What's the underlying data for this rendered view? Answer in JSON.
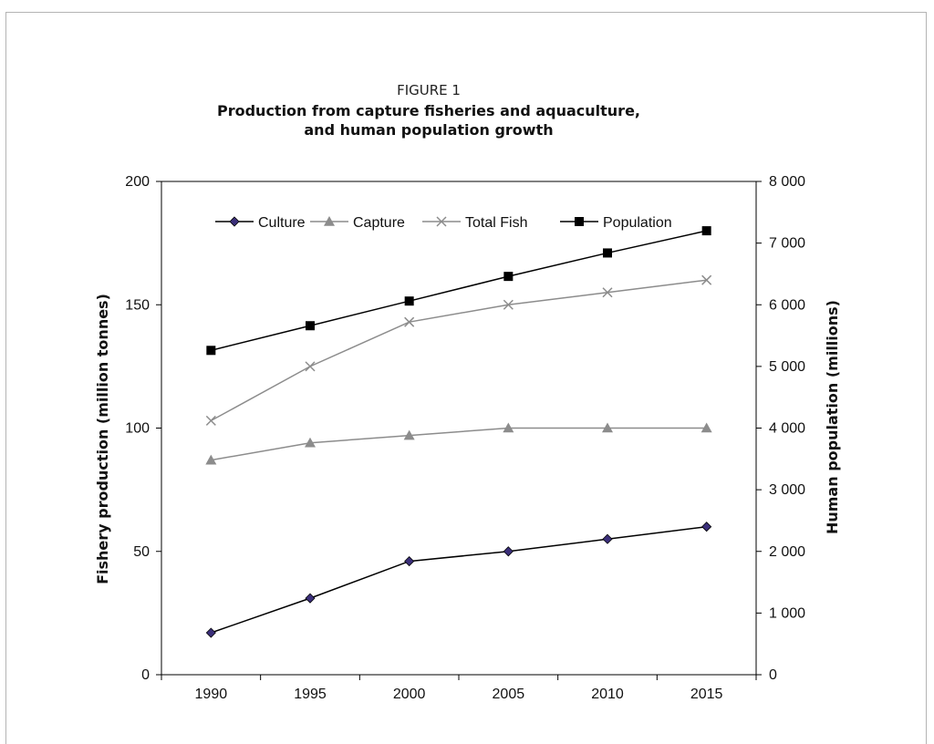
{
  "figure": {
    "label": "FIGURE 1",
    "title_line1": "Production from capture fisheries and aquaculture,",
    "title_line2": "and human population growth"
  },
  "chart_data": {
    "type": "line",
    "x": [
      1990,
      1995,
      2000,
      2005,
      2010,
      2015
    ],
    "xlabel": "",
    "ylabel_left": "Fishery production (million tonnes)",
    "ylabel_right": "Human population (millions)",
    "ylim_left": [
      0,
      200
    ],
    "yticks_left": [
      0,
      50,
      100,
      150,
      200
    ],
    "ytick_labels_left": [
      "0",
      "50",
      "100",
      "150",
      "200"
    ],
    "ylim_right": [
      0,
      8000
    ],
    "yticks_right": [
      0,
      1000,
      2000,
      3000,
      4000,
      5000,
      6000,
      7000,
      8000
    ],
    "ytick_labels_right": [
      "0",
      "1 000",
      "2 000",
      "3 000",
      "4 000",
      "5 000",
      "6 000",
      "7 000",
      "8 000"
    ],
    "legend_position": "top",
    "grid": false,
    "series": [
      {
        "name": "Culture",
        "axis": "left",
        "color": "#000000",
        "marker": "diamond",
        "marker_color": "#3b2f7a",
        "values": [
          17,
          31,
          46,
          50,
          55,
          60
        ]
      },
      {
        "name": "Capture",
        "axis": "left",
        "color": "#8c8c8c",
        "marker": "triangle",
        "marker_color": "#8c8c8c",
        "values": [
          87,
          94,
          97,
          100,
          100,
          100
        ]
      },
      {
        "name": "Total Fish",
        "axis": "left",
        "color": "#8c8c8c",
        "marker": "x",
        "marker_color": "#8c8c8c",
        "values": [
          103,
          125,
          143,
          150,
          155,
          160
        ]
      },
      {
        "name": "Population",
        "axis": "right",
        "color": "#000000",
        "marker": "square",
        "marker_color": "#000000",
        "values": [
          5260,
          5660,
          6060,
          6460,
          6840,
          7200
        ]
      }
    ]
  }
}
